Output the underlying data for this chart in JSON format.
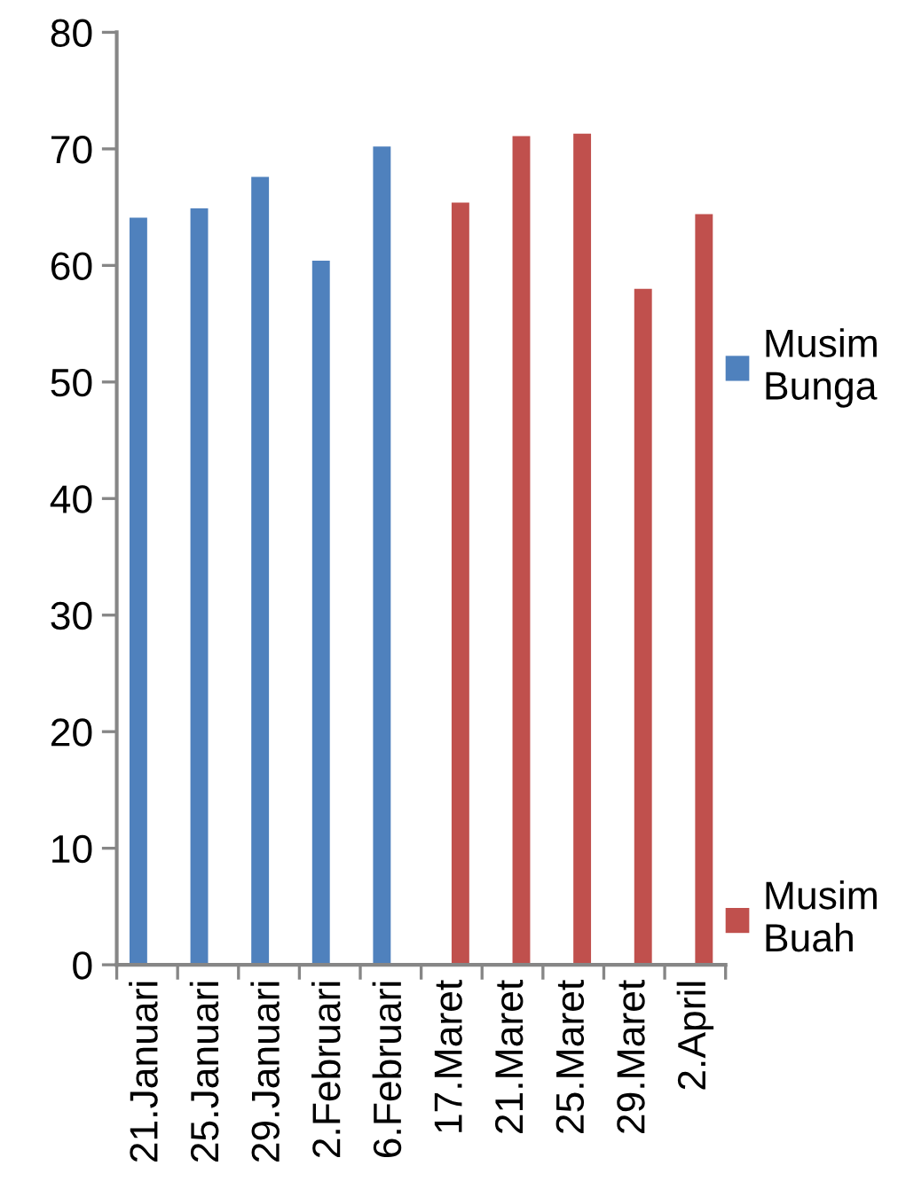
{
  "chart_data": {
    "type": "bar",
    "categories": [
      "21.Januari",
      "25.Januari",
      "29.Januari",
      "2.Februari",
      "6.Februari",
      "17.Maret",
      "21.Maret",
      "25.Maret",
      "29.Maret",
      "2.April"
    ],
    "series": [
      {
        "name": "Musim Bunga",
        "color": "#4f81bd",
        "values": [
          64.1,
          64.9,
          67.6,
          60.4,
          70.2,
          null,
          null,
          null,
          null,
          null
        ]
      },
      {
        "name": "Musim Buah",
        "color": "#c0504d",
        "values": [
          null,
          null,
          null,
          null,
          null,
          65.4,
          71.1,
          71.3,
          58.0,
          64.4
        ]
      }
    ],
    "ylim": [
      0,
      80
    ],
    "yticks": [
      0,
      10,
      20,
      30,
      40,
      50,
      60,
      70,
      80
    ],
    "legend": "right"
  }
}
